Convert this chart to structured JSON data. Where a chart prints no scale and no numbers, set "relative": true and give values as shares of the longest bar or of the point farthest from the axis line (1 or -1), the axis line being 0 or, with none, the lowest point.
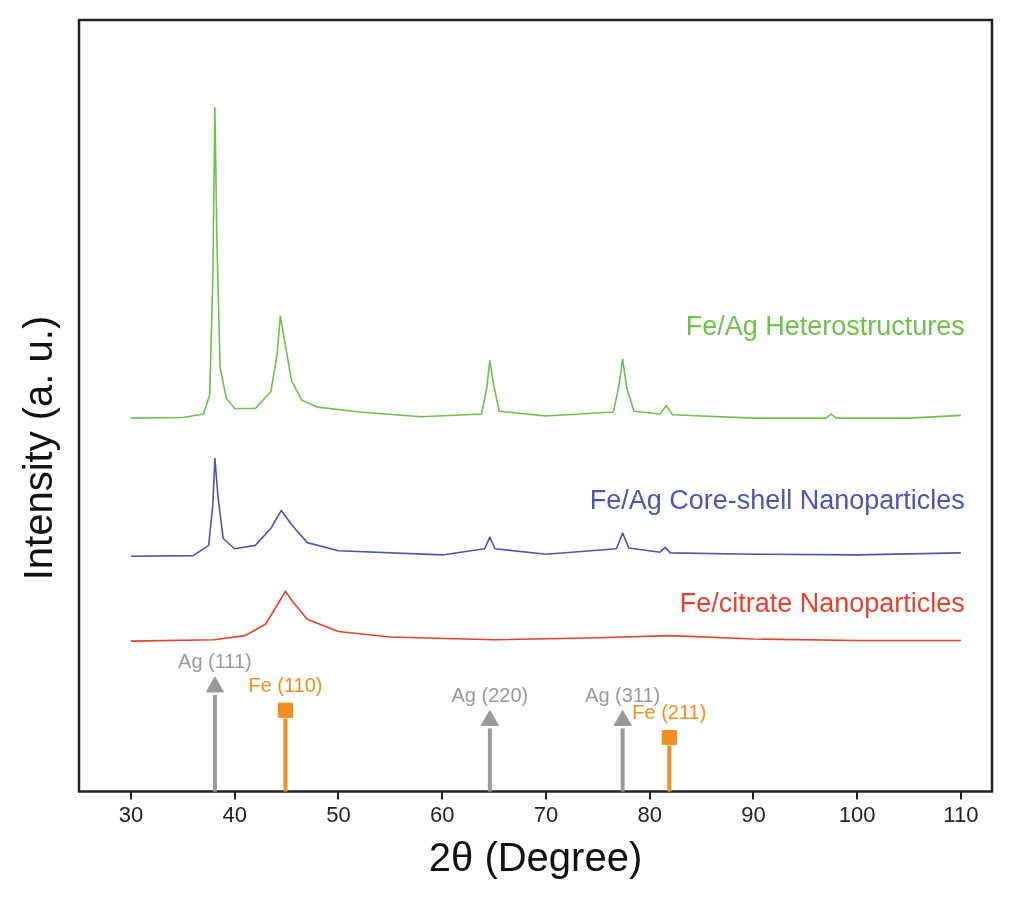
{
  "chart_data": {
    "type": "line",
    "xlabel": "2θ (Degree)",
    "ylabel": "Intensity (a. u.)",
    "relative": true,
    "xlim": [
      25,
      113
    ],
    "xticks": [
      30,
      40,
      50,
      60,
      70,
      80,
      90,
      100,
      110
    ],
    "grid": false,
    "legend": false,
    "marker": "none",
    "line_style": "solid",
    "series": [
      {
        "name": "Fe/Ag Heterostructures",
        "color": "#6cc24a",
        "x": [
          30,
          35,
          37,
          37.6,
          37.9,
          38.1,
          38.3,
          38.6,
          39.2,
          40,
          42,
          43.5,
          44.1,
          44.4,
          44.8,
          45.5,
          46.5,
          48,
          52,
          58,
          63.8,
          64.3,
          64.6,
          64.9,
          65.5,
          70,
          76.5,
          77,
          77.4,
          77.8,
          78.5,
          81,
          81.6,
          82.2,
          90,
          97,
          97.5,
          98,
          105,
          110
        ],
        "values": [
          0.546,
          0.547,
          0.552,
          0.58,
          0.75,
          1.0,
          0.8,
          0.62,
          0.575,
          0.56,
          0.56,
          0.585,
          0.64,
          0.695,
          0.66,
          0.6,
          0.572,
          0.562,
          0.555,
          0.548,
          0.552,
          0.59,
          0.63,
          0.6,
          0.556,
          0.549,
          0.555,
          0.59,
          0.632,
          0.59,
          0.556,
          0.552,
          0.564,
          0.551,
          0.546,
          0.546,
          0.552,
          0.546,
          0.546,
          0.55
        ]
      },
      {
        "name": "Fe/Ag Core-shell Nanoparticles",
        "color": "#4a56b0",
        "x": [
          30,
          36,
          37.5,
          37.9,
          38.1,
          38.4,
          38.9,
          40,
          42,
          43.5,
          44.5,
          45.5,
          47,
          50,
          60,
          64.1,
          64.6,
          65.1,
          70,
          76.8,
          77.4,
          78,
          81,
          81.5,
          82,
          90,
          100,
          110
        ],
        "values": [
          0.344,
          0.345,
          0.36,
          0.42,
          0.487,
          0.43,
          0.37,
          0.355,
          0.36,
          0.385,
          0.411,
          0.39,
          0.364,
          0.352,
          0.346,
          0.355,
          0.372,
          0.355,
          0.347,
          0.355,
          0.378,
          0.356,
          0.35,
          0.357,
          0.349,
          0.347,
          0.346,
          0.349
        ]
      },
      {
        "name": "Fe/citrate Nanoparticles",
        "color": "#e8402a",
        "x": [
          30,
          38,
          41,
          43,
          44.2,
          44.9,
          45.6,
          47,
          50,
          55,
          65,
          75,
          82,
          90,
          100,
          110
        ],
        "values": [
          0.22,
          0.222,
          0.228,
          0.245,
          0.275,
          0.293,
          0.278,
          0.252,
          0.234,
          0.226,
          0.222,
          0.225,
          0.228,
          0.223,
          0.221,
          0.221
        ]
      },
      {
        "type": "lollipop",
        "color": "#999999",
        "marker": "triangle",
        "x": [
          38.1,
          64.6,
          77.4
        ],
        "values": [
          0.153,
          0.104,
          0.104
        ]
      },
      {
        "type": "lollipop",
        "color": "#f28c1e",
        "marker": "square",
        "x": [
          44.9,
          81.9
        ],
        "values": [
          0.119,
          0.079
        ]
      }
    ],
    "annotations": [
      {
        "text": "Ag (111)",
        "x": 38.1,
        "y": 0.153
      },
      {
        "text": "Ag (220)",
        "x": 64.6,
        "y": 0.104
      },
      {
        "text": "Ag (311)",
        "x": 77.4,
        "y": 0.104
      },
      {
        "text": "Fe (110)",
        "x": 44.9,
        "y": 0.119
      },
      {
        "text": "Fe (211)",
        "x": 81.9,
        "y": 0.079
      }
    ]
  }
}
